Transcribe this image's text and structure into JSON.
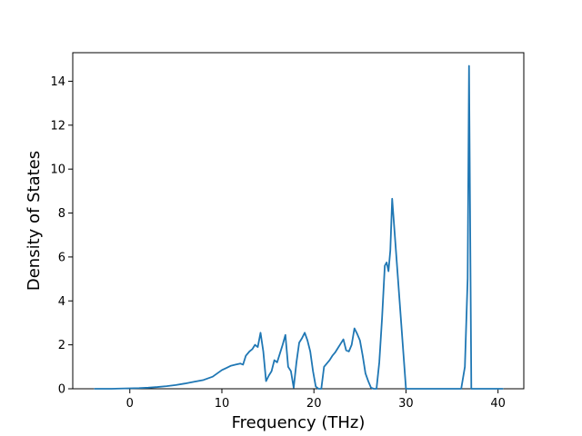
{
  "chart_data": {
    "type": "line",
    "title": "",
    "xlabel": "Frequency (THz)",
    "ylabel": "Density of States",
    "xlim": [
      -6.2,
      42.8
    ],
    "ylim": [
      0,
      15.3
    ],
    "xticks": [
      0,
      10,
      20,
      30,
      40
    ],
    "yticks": [
      0,
      2,
      4,
      6,
      8,
      10,
      12,
      14
    ],
    "xtick_labels": [
      "0",
      "10",
      "20",
      "30",
      "40"
    ],
    "ytick_labels": [
      "0",
      "2",
      "4",
      "6",
      "8",
      "10",
      "12",
      "14"
    ],
    "grid": false,
    "legend": "none",
    "series": [
      {
        "color": "#1f77b4",
        "x": [
          -3.8,
          -2,
          0,
          1,
          2,
          3,
          4,
          5,
          6,
          7,
          8,
          9,
          9.5,
          10,
          10.5,
          11,
          11.5,
          12,
          12.3,
          12.6,
          13,
          13.3,
          13.6,
          13.9,
          14.2,
          14.5,
          14.8,
          15.1,
          15.4,
          15.7,
          16,
          16.3,
          16.6,
          16.9,
          17.2,
          17.5,
          17.8,
          18.1,
          18.4,
          18.7,
          19,
          19.3,
          19.6,
          19.9,
          20.2,
          20.5,
          20.8,
          21.1,
          21.4,
          21.7,
          22,
          22.3,
          22.6,
          22.9,
          23.2,
          23.5,
          23.8,
          24.1,
          24.4,
          24.7,
          25,
          25.3,
          25.6,
          25.9,
          26.2,
          26.5,
          26.8,
          27.1,
          27.4,
          27.7,
          27.9,
          28.1,
          28.3,
          28.5,
          30,
          33,
          35.5,
          36,
          36.4,
          36.7,
          36.85,
          37.1,
          38,
          40.5
        ],
        "y": [
          0,
          0,
          0.02,
          0.03,
          0.05,
          0.08,
          0.12,
          0.17,
          0.24,
          0.32,
          0.4,
          0.55,
          0.7,
          0.85,
          0.95,
          1.05,
          1.1,
          1.15,
          1.1,
          1.5,
          1.7,
          1.8,
          2.0,
          1.9,
          2.55,
          1.7,
          0.35,
          0.6,
          0.8,
          1.3,
          1.2,
          1.6,
          2.0,
          2.45,
          1.0,
          0.8,
          0.05,
          1.2,
          2.1,
          2.3,
          2.55,
          2.2,
          1.7,
          0.8,
          0.1,
          0,
          0,
          1.0,
          1.15,
          1.3,
          1.5,
          1.65,
          1.85,
          2.05,
          2.25,
          1.75,
          1.7,
          2.0,
          2.75,
          2.5,
          2.2,
          1.5,
          0.7,
          0.35,
          0.05,
          0,
          0,
          1.2,
          3.2,
          5.6,
          5.75,
          5.35,
          6.3,
          8.65,
          0,
          0,
          0,
          0,
          1.0,
          5.0,
          14.7,
          0,
          0,
          0
        ]
      }
    ]
  }
}
